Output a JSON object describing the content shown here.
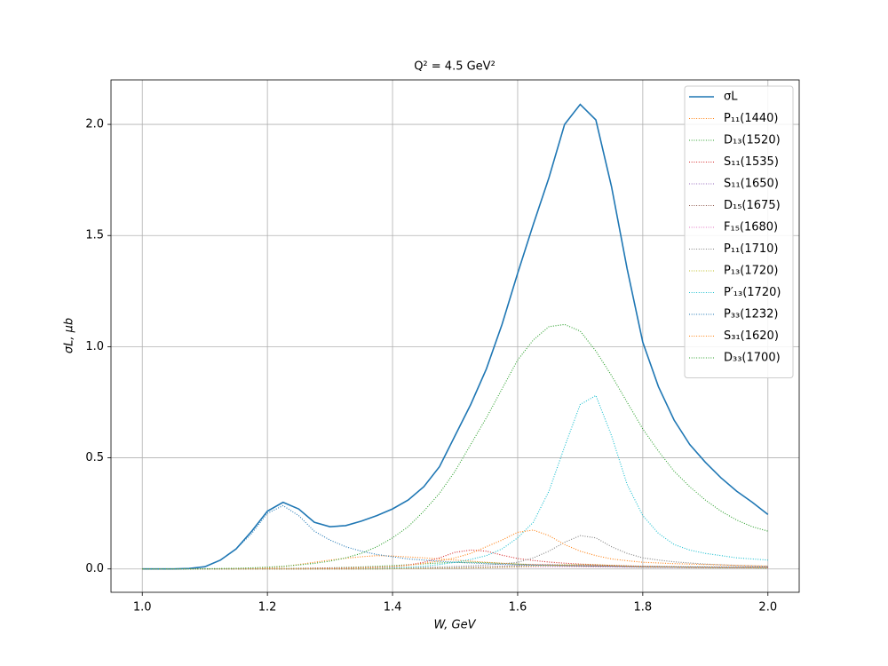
{
  "chart_data": {
    "type": "line",
    "title": "Q² = 4.5 GeV²",
    "x_label": "W, GeV",
    "y_label": "σL, μb",
    "xlim": [
      0.95,
      2.05
    ],
    "ylim": [
      -0.105,
      2.2
    ],
    "xticks": [
      {
        "value": 1,
        "label": "1.0"
      },
      1.2,
      1.4,
      1.6,
      1.8,
      {
        "value": 2,
        "label": "2.0"
      }
    ],
    "yticks": [
      {
        "value": 0,
        "label": "0.0"
      },
      0.5,
      {
        "value": 1,
        "label": "1.0"
      },
      1.5,
      {
        "value": 2,
        "label": "2.0"
      }
    ],
    "grid": true,
    "legend": "upper right",
    "x": [
      1,
      1.025,
      1.05,
      1.075,
      1.1,
      1.125,
      1.15,
      1.175,
      1.2,
      1.225,
      1.25,
      1.275,
      1.3,
      1.325,
      1.35,
      1.375,
      1.4,
      1.425,
      1.45,
      1.475,
      1.5,
      1.525,
      1.55,
      1.575,
      1.6,
      1.625,
      1.65,
      1.675,
      1.7,
      1.725,
      1.75,
      1.775,
      1.8,
      1.825,
      1.85,
      1.875,
      1.9,
      1.925,
      1.95,
      1.975,
      2
    ],
    "series": [
      {
        "name": "σL",
        "color": "#1f77b4",
        "style": "solid",
        "values": [
          0,
          0,
          0,
          0.002,
          0.01,
          0.04,
          0.09,
          0.17,
          0.26,
          0.3,
          0.27,
          0.21,
          0.19,
          0.195,
          0.215,
          0.24,
          0.27,
          0.31,
          0.37,
          0.46,
          0.6,
          0.74,
          0.9,
          1.1,
          1.33,
          1.55,
          1.76,
          2.0,
          2.09,
          2.02,
          1.72,
          1.35,
          1.02,
          0.82,
          0.67,
          0.56,
          0.48,
          0.41,
          0.35,
          0.3,
          0.245
        ]
      },
      {
        "name": "P₁₁(1440)",
        "color": "#ff7f0e",
        "style": "dotted",
        "values": [
          0,
          0,
          0,
          0,
          0,
          0.001,
          0.002,
          0.003,
          0.005,
          0.01,
          0.02,
          0.03,
          0.04,
          0.048,
          0.055,
          0.06,
          0.058,
          0.054,
          0.05,
          0.045,
          0.04,
          0.035,
          0.03,
          0.026,
          0.022,
          0.02,
          0.018,
          0.016,
          0.015,
          0.014,
          0.013,
          0.012,
          0.01,
          0.009,
          0.009,
          0.008,
          0.008,
          0.007,
          0.007,
          0.006,
          0.006
        ]
      },
      {
        "name": "D₁₃(1520)",
        "color": "#2ca02c",
        "style": "dotted",
        "values": [
          0,
          0,
          0,
          0,
          0,
          0,
          0,
          0,
          0.001,
          0.002,
          0.003,
          0.004,
          0.005,
          0.007,
          0.009,
          0.012,
          0.015,
          0.019,
          0.023,
          0.027,
          0.03,
          0.03,
          0.028,
          0.025,
          0.022,
          0.019,
          0.016,
          0.014,
          0.012,
          0.011,
          0.01,
          0.009,
          0.008,
          0.007,
          0.007,
          0.006,
          0.006,
          0.005,
          0.005,
          0.005,
          0.004
        ]
      },
      {
        "name": "S₁₁(1535)",
        "color": "#d62728",
        "style": "dotted",
        "values": [
          0,
          0,
          0,
          0,
          0,
          0,
          0,
          0,
          0.001,
          0.001,
          0.002,
          0.003,
          0.004,
          0.005,
          0.006,
          0.008,
          0.01,
          0.018,
          0.03,
          0.05,
          0.075,
          0.085,
          0.08,
          0.062,
          0.047,
          0.038,
          0.031,
          0.026,
          0.022,
          0.019,
          0.016,
          0.014,
          0.012,
          0.011,
          0.01,
          0.009,
          0.008,
          0.008,
          0.007,
          0.007,
          0.006
        ]
      },
      {
        "name": "S₁₁(1650)",
        "color": "#9467bd",
        "style": "dotted",
        "values": [
          0,
          0,
          0,
          0,
          0,
          0,
          0,
          0,
          0,
          0,
          0,
          0,
          0,
          0,
          0,
          0,
          0.002,
          0.003,
          0.004,
          0.005,
          0.006,
          0.008,
          0.01,
          0.013,
          0.016,
          0.019,
          0.02,
          0.019,
          0.017,
          0.015,
          0.013,
          0.011,
          0.01,
          0.009,
          0.008,
          0.007,
          0.006,
          0.006,
          0.005,
          0.005,
          0.005
        ]
      },
      {
        "name": "D₁₅(1675)",
        "color": "#8c564b",
        "style": "dotted",
        "values": [
          0,
          0,
          0,
          0,
          0,
          0,
          0,
          0,
          0,
          0,
          0,
          0,
          0,
          0,
          0,
          0,
          0.001,
          0.002,
          0.003,
          0.004,
          0.005,
          0.006,
          0.008,
          0.01,
          0.012,
          0.014,
          0.015,
          0.015,
          0.014,
          0.013,
          0.012,
          0.011,
          0.01,
          0.009,
          0.008,
          0.007,
          0.007,
          0.006,
          0.006,
          0.005,
          0.005
        ]
      },
      {
        "name": "F₁₅(1680)",
        "color": "#e377c2",
        "style": "dotted",
        "values": [
          0,
          0,
          0,
          0,
          0,
          0,
          0,
          0,
          0,
          0,
          0,
          0,
          0,
          0,
          0,
          0,
          0.001,
          0.001,
          0.002,
          0.002,
          0.003,
          0.004,
          0.005,
          0.006,
          0.008,
          0.009,
          0.01,
          0.01,
          0.01,
          0.009,
          0.009,
          0.008,
          0.008,
          0.007,
          0.007,
          0.006,
          0.006,
          0.006,
          0.005,
          0.005,
          0.005
        ]
      },
      {
        "name": "P₁₁(1710)",
        "color": "#7f7f7f",
        "style": "dotted",
        "values": [
          0,
          0,
          0,
          0,
          0,
          0,
          0,
          0,
          0,
          0,
          0,
          0,
          0,
          0,
          0,
          0,
          0.004,
          0.005,
          0.007,
          0.009,
          0.011,
          0.014,
          0.018,
          0.023,
          0.03,
          0.05,
          0.08,
          0.12,
          0.15,
          0.14,
          0.1,
          0.07,
          0.05,
          0.04,
          0.032,
          0.027,
          0.022,
          0.019,
          0.016,
          0.014,
          0.012
        ]
      },
      {
        "name": "P₁₃(1720)",
        "color": "#bcbd22",
        "style": "dotted",
        "values": [
          0,
          0,
          0,
          0,
          0,
          0,
          0,
          0,
          0,
          0,
          0,
          0,
          0,
          0,
          0,
          0,
          0.001,
          0.002,
          0.002,
          0.003,
          0.004,
          0.005,
          0.006,
          0.008,
          0.01,
          0.013,
          0.016,
          0.019,
          0.02,
          0.019,
          0.016,
          0.013,
          0.011,
          0.01,
          0.009,
          0.008,
          0.007,
          0.006,
          0.006,
          0.005,
          0.005
        ]
      },
      {
        "name": "P′₁₃(1720)",
        "color": "#17becf",
        "style": "dotted",
        "values": [
          0,
          0,
          0,
          0,
          0,
          0,
          0,
          0,
          0,
          0,
          0,
          0,
          0.001,
          0.002,
          0.003,
          0.004,
          0.005,
          0.008,
          0.012,
          0.02,
          0.03,
          0.043,
          0.06,
          0.09,
          0.14,
          0.21,
          0.35,
          0.55,
          0.74,
          0.78,
          0.6,
          0.38,
          0.24,
          0.16,
          0.11,
          0.085,
          0.07,
          0.06,
          0.05,
          0.045,
          0.04
        ]
      },
      {
        "name": "P₃₃(1232)",
        "color": "#1f77b4",
        "style": "dotted",
        "values": [
          0,
          0,
          0,
          0.001,
          0.01,
          0.04,
          0.09,
          0.16,
          0.25,
          0.285,
          0.24,
          0.17,
          0.13,
          0.1,
          0.08,
          0.065,
          0.055,
          0.045,
          0.04,
          0.035,
          0.03,
          0.027,
          0.024,
          0.021,
          0.019,
          0.017,
          0.016,
          0.015,
          0.014,
          0.013,
          0.012,
          0.011,
          0.01,
          0.01,
          0.009,
          0.009,
          0.009,
          0.008,
          0.008,
          0.008,
          0.008
        ]
      },
      {
        "name": "S₃₁(1620)",
        "color": "#ff7f0e",
        "style": "dotted",
        "values": [
          0,
          0,
          0,
          0,
          0,
          0,
          0,
          0,
          0,
          0,
          0,
          0,
          0.001,
          0.002,
          0.004,
          0.006,
          0.01,
          0.016,
          0.025,
          0.036,
          0.05,
          0.07,
          0.1,
          0.13,
          0.165,
          0.175,
          0.15,
          0.11,
          0.08,
          0.06,
          0.045,
          0.037,
          0.03,
          0.027,
          0.024,
          0.022,
          0.02,
          0.018,
          0.016,
          0.014,
          0.013
        ]
      },
      {
        "name": "D₃₃(1700)",
        "color": "#2ca02c",
        "style": "dotted",
        "values": [
          0,
          0,
          0,
          0,
          0.001,
          0.002,
          0.003,
          0.005,
          0.008,
          0.012,
          0.018,
          0.025,
          0.035,
          0.05,
          0.07,
          0.1,
          0.14,
          0.19,
          0.26,
          0.34,
          0.44,
          0.56,
          0.68,
          0.81,
          0.94,
          1.03,
          1.09,
          1.1,
          1.07,
          0.98,
          0.87,
          0.75,
          0.63,
          0.53,
          0.44,
          0.37,
          0.31,
          0.26,
          0.22,
          0.19,
          0.17
        ]
      }
    ]
  }
}
